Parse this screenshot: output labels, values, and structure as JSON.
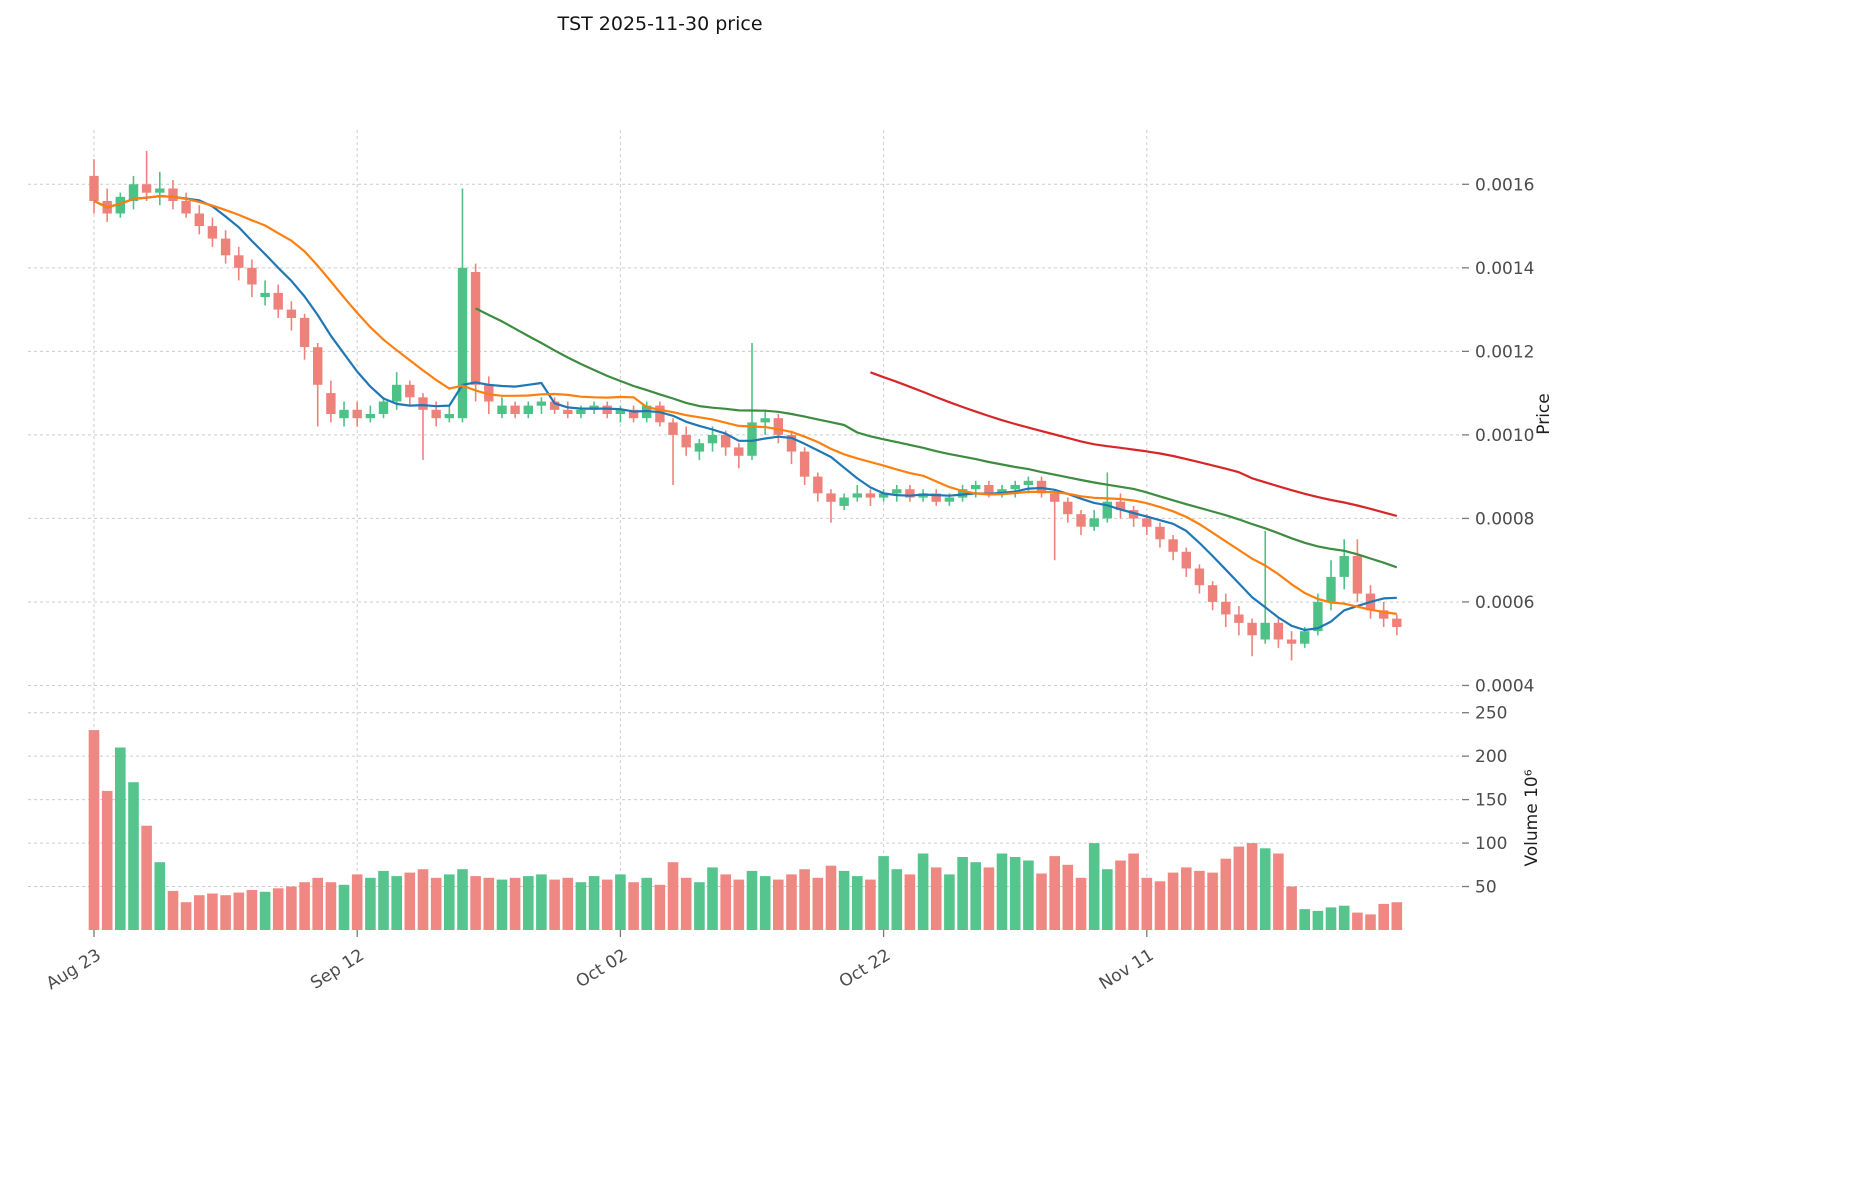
{
  "chart_data": {
    "type": "candlestick",
    "title": "TST  2025-11-30  price",
    "x_axis": {
      "tick_labels": [
        "Aug 23",
        "Sep 12",
        "Oct 02",
        "Oct 22",
        "Nov 11"
      ],
      "tick_indices": [
        0,
        20,
        40,
        60,
        80
      ]
    },
    "price_axis": {
      "label": "Price",
      "ticks": [
        0.0004,
        0.0006,
        0.0008,
        0.001,
        0.0012,
        0.0014,
        0.0016
      ],
      "range": [
        0.00037,
        0.00173
      ]
    },
    "volume_axis": {
      "label": "Volume  10⁶",
      "ticks": [
        50,
        100,
        150,
        200,
        250
      ],
      "range": [
        0,
        260
      ],
      "unit": "1e6"
    },
    "moving_averages": [
      {
        "name": "ma-fast",
        "window": 7,
        "min_periods": 1,
        "color": "#1f77b4"
      },
      {
        "name": "ma-medium",
        "window": 14,
        "min_periods": 1,
        "color": "#ff7f0e"
      },
      {
        "name": "ma-slow",
        "window": 30,
        "min_periods": 30,
        "color": "#3d8c40"
      },
      {
        "name": "ma-slowest",
        "window": 60,
        "min_periods": 60,
        "color": "#d62728"
      }
    ],
    "colors": {
      "up": "#4cc287",
      "down": "#ee827b",
      "grid": "#cccccc",
      "text": "#4c4c4c",
      "title": "#151515"
    },
    "ohlcv": [
      [
        0.00162,
        0.00166,
        0.00153,
        0.00156,
        230
      ],
      [
        0.00156,
        0.00159,
        0.00151,
        0.00153,
        160
      ],
      [
        0.00153,
        0.00158,
        0.00152,
        0.00157,
        210
      ],
      [
        0.00156,
        0.00162,
        0.00154,
        0.0016,
        170
      ],
      [
        0.0016,
        0.00168,
        0.00156,
        0.00158,
        120
      ],
      [
        0.00158,
        0.00163,
        0.00155,
        0.00159,
        78
      ],
      [
        0.00159,
        0.00161,
        0.00154,
        0.00156,
        45
      ],
      [
        0.00156,
        0.00158,
        0.00152,
        0.00153,
        32
      ],
      [
        0.00153,
        0.00155,
        0.00148,
        0.0015,
        40
      ],
      [
        0.0015,
        0.00152,
        0.00145,
        0.00147,
        42
      ],
      [
        0.00147,
        0.00149,
        0.00141,
        0.00143,
        40
      ],
      [
        0.00143,
        0.00145,
        0.00137,
        0.0014,
        43
      ],
      [
        0.0014,
        0.00142,
        0.00133,
        0.00136,
        46
      ],
      [
        0.00133,
        0.00137,
        0.00131,
        0.00134,
        44
      ],
      [
        0.00134,
        0.00136,
        0.00128,
        0.0013,
        48
      ],
      [
        0.0013,
        0.00132,
        0.00125,
        0.00128,
        50
      ],
      [
        0.00128,
        0.00129,
        0.00118,
        0.00121,
        55
      ],
      [
        0.00121,
        0.00122,
        0.00102,
        0.00112,
        60
      ],
      [
        0.0011,
        0.00113,
        0.00103,
        0.00105,
        55
      ],
      [
        0.00104,
        0.00108,
        0.00102,
        0.00106,
        52
      ],
      [
        0.00106,
        0.00108,
        0.00102,
        0.00104,
        64
      ],
      [
        0.00104,
        0.00107,
        0.00103,
        0.00105,
        60
      ],
      [
        0.00105,
        0.00109,
        0.00104,
        0.00108,
        68
      ],
      [
        0.00108,
        0.00115,
        0.00106,
        0.00112,
        62
      ],
      [
        0.00112,
        0.00113,
        0.00107,
        0.00109,
        66
      ],
      [
        0.00109,
        0.0011,
        0.00094,
        0.00106,
        70
      ],
      [
        0.00106,
        0.00108,
        0.00102,
        0.00104,
        60
      ],
      [
        0.00104,
        0.00107,
        0.00103,
        0.00105,
        64
      ],
      [
        0.00104,
        0.00159,
        0.00103,
        0.0014,
        70
      ],
      [
        0.00139,
        0.00141,
        0.00108,
        0.00112,
        62
      ],
      [
        0.00112,
        0.00114,
        0.00105,
        0.00108,
        60
      ],
      [
        0.00105,
        0.00109,
        0.00104,
        0.00107,
        58
      ],
      [
        0.00107,
        0.00108,
        0.00104,
        0.00105,
        60
      ],
      [
        0.00105,
        0.00108,
        0.00104,
        0.00107,
        62
      ],
      [
        0.00107,
        0.00109,
        0.00105,
        0.00108,
        64
      ],
      [
        0.00108,
        0.00109,
        0.00105,
        0.00106,
        58
      ],
      [
        0.00106,
        0.00108,
        0.00104,
        0.00105,
        60
      ],
      [
        0.00105,
        0.00107,
        0.00104,
        0.00106,
        55
      ],
      [
        0.00106,
        0.00108,
        0.00105,
        0.00107,
        62
      ],
      [
        0.00107,
        0.00108,
        0.00104,
        0.00105,
        58
      ],
      [
        0.00105,
        0.00107,
        0.00103,
        0.00106,
        64
      ],
      [
        0.00106,
        0.00107,
        0.00103,
        0.00104,
        55
      ],
      [
        0.00104,
        0.00108,
        0.00103,
        0.00107,
        60
      ],
      [
        0.00107,
        0.00108,
        0.00102,
        0.00103,
        52
      ],
      [
        0.00103,
        0.00104,
        0.00088,
        0.001,
        78
      ],
      [
        0.001,
        0.00102,
        0.00095,
        0.00097,
        60
      ],
      [
        0.00096,
        0.00099,
        0.00094,
        0.00098,
        55
      ],
      [
        0.00098,
        0.00102,
        0.00096,
        0.001,
        72
      ],
      [
        0.001,
        0.00101,
        0.00095,
        0.00097,
        64
      ],
      [
        0.00097,
        0.00098,
        0.00092,
        0.00095,
        58
      ],
      [
        0.00095,
        0.00122,
        0.00094,
        0.00103,
        68
      ],
      [
        0.00103,
        0.00106,
        0.001,
        0.00104,
        62
      ],
      [
        0.00104,
        0.00105,
        0.00098,
        0.001,
        58
      ],
      [
        0.001,
        0.00101,
        0.00093,
        0.00096,
        64
      ],
      [
        0.00096,
        0.00097,
        0.00088,
        0.0009,
        70
      ],
      [
        0.0009,
        0.00091,
        0.00084,
        0.00086,
        60
      ],
      [
        0.00086,
        0.00087,
        0.00079,
        0.00084,
        74
      ],
      [
        0.00083,
        0.00086,
        0.00082,
        0.00085,
        68
      ],
      [
        0.00085,
        0.00088,
        0.00084,
        0.00086,
        62
      ],
      [
        0.00086,
        0.00087,
        0.00083,
        0.00085,
        58
      ],
      [
        0.00085,
        0.00087,
        0.00084,
        0.00086,
        85
      ],
      [
        0.00086,
        0.00088,
        0.00084,
        0.00087,
        70
      ],
      [
        0.00087,
        0.00088,
        0.00084,
        0.00085,
        64
      ],
      [
        0.00085,
        0.00087,
        0.00084,
        0.00086,
        88
      ],
      [
        0.00086,
        0.00087,
        0.00083,
        0.00084,
        72
      ],
      [
        0.00084,
        0.00086,
        0.00083,
        0.00085,
        64
      ],
      [
        0.00085,
        0.00088,
        0.00084,
        0.00087,
        84
      ],
      [
        0.00087,
        0.00089,
        0.00085,
        0.00088,
        78
      ],
      [
        0.00088,
        0.00089,
        0.00085,
        0.00086,
        72
      ],
      [
        0.00086,
        0.00088,
        0.00085,
        0.00087,
        88
      ],
      [
        0.00087,
        0.00089,
        0.00085,
        0.00088,
        84
      ],
      [
        0.00088,
        0.0009,
        0.00086,
        0.00089,
        80
      ],
      [
        0.00089,
        0.0009,
        0.00085,
        0.00086,
        65
      ],
      [
        0.00086,
        0.00087,
        0.0007,
        0.00084,
        85
      ],
      [
        0.00084,
        0.00085,
        0.00079,
        0.00081,
        75
      ],
      [
        0.00081,
        0.00082,
        0.00076,
        0.00078,
        60
      ],
      [
        0.00078,
        0.00082,
        0.00077,
        0.0008,
        100
      ],
      [
        0.0008,
        0.00091,
        0.00079,
        0.00084,
        70
      ],
      [
        0.00084,
        0.00086,
        0.0008,
        0.00082,
        80
      ],
      [
        0.00082,
        0.00083,
        0.00078,
        0.0008,
        88
      ],
      [
        0.0008,
        0.00081,
        0.00076,
        0.00078,
        60
      ],
      [
        0.00078,
        0.00079,
        0.00073,
        0.00075,
        56
      ],
      [
        0.00075,
        0.00076,
        0.0007,
        0.00072,
        66
      ],
      [
        0.00072,
        0.00073,
        0.00066,
        0.00068,
        72
      ],
      [
        0.00068,
        0.00069,
        0.00062,
        0.00064,
        68
      ],
      [
        0.00064,
        0.00065,
        0.00058,
        0.0006,
        66
      ],
      [
        0.0006,
        0.00062,
        0.00054,
        0.00057,
        82
      ],
      [
        0.00057,
        0.00059,
        0.00052,
        0.00055,
        96
      ],
      [
        0.00055,
        0.00056,
        0.00047,
        0.00052,
        100
      ],
      [
        0.00051,
        0.00077,
        0.0005,
        0.00055,
        94
      ],
      [
        0.00055,
        0.00056,
        0.00049,
        0.00051,
        88
      ],
      [
        0.00051,
        0.00053,
        0.00046,
        0.0005,
        50
      ],
      [
        0.0005,
        0.00054,
        0.00049,
        0.00053,
        24
      ],
      [
        0.00053,
        0.00062,
        0.00052,
        0.0006,
        22
      ],
      [
        0.0006,
        0.0007,
        0.00058,
        0.00066,
        26
      ],
      [
        0.00066,
        0.00075,
        0.00063,
        0.00071,
        28
      ],
      [
        0.00071,
        0.00075,
        0.0006,
        0.00062,
        20
      ],
      [
        0.00062,
        0.00064,
        0.00056,
        0.00058,
        18
      ],
      [
        0.00058,
        0.0006,
        0.00054,
        0.00056,
        30
      ],
      [
        0.00056,
        0.00057,
        0.00052,
        0.00054,
        32
      ]
    ]
  }
}
